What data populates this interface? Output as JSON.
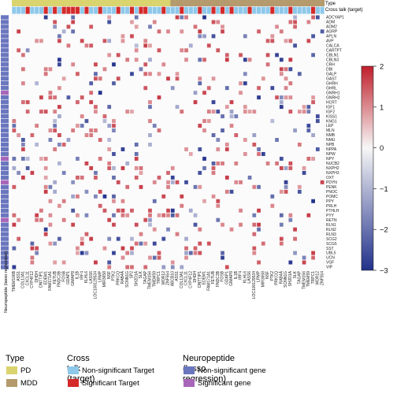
{
  "chart_data": {
    "type": "heatmap",
    "annotation_labels": {
      "type": "Type",
      "crosstalk": "Cross talk (target)",
      "neuropeptide": "Neuropeptide (lasso regression)"
    },
    "rows": [
      "ADCYAP1",
      "ADM",
      "ADM2",
      "AGRP",
      "APLN",
      "AVP",
      "CALCA",
      "CARTPT",
      "CBLN1",
      "CBLN3",
      "CRH",
      "DBI",
      "GALP",
      "GAST",
      "GHRH",
      "GHRL",
      "GNRH1",
      "GNRH2",
      "HCRT",
      "IGF1",
      "IGF2",
      "KISS1",
      "KNG1",
      "LEP",
      "MLN",
      "NMB",
      "NMU",
      "NPB",
      "NPPA",
      "NPW",
      "NPY",
      "NUCB2",
      "NXPH2",
      "NXPH3",
      "OXT",
      "PDYN",
      "PENK",
      "PNOC",
      "POMC",
      "PPY",
      "PRLH",
      "PTHLH",
      "PYY",
      "RETN",
      "RLN1",
      "RLN2",
      "RLN3",
      "SCG2",
      "SCG5",
      "SST",
      "UBL5",
      "UCN",
      "VGF",
      "VIP"
    ],
    "row_significant": [
      false,
      false,
      false,
      false,
      false,
      false,
      false,
      false,
      false,
      false,
      false,
      false,
      false,
      false,
      false,
      false,
      true,
      false,
      false,
      false,
      false,
      false,
      false,
      false,
      false,
      false,
      false,
      false,
      false,
      false,
      true,
      false,
      false,
      false,
      false,
      true,
      false,
      false,
      false,
      false,
      false,
      false,
      false,
      true,
      false,
      false,
      false,
      false,
      false,
      false,
      false,
      false,
      false,
      false
    ],
    "columns": [
      "TMEM106B",
      "ASS1",
      "COL13A1",
      "CXCL11",
      "CYP4F12",
      "DHDH",
      "DNTTIP1",
      "EDEM1",
      "FAM171A1",
      "FETUB",
      "FNDC3B",
      "FOSB",
      "GDAP1",
      "GIMAP8",
      "IL1B",
      "IRF4",
      "KLHL6",
      "LASS6",
      "LOC100129534",
      "LRMP",
      "MIR3658",
      "NSF",
      "PTK2",
      "PRKCQ",
      "RAB4A",
      "SCNN1G",
      "SP2",
      "SH2D1A",
      "SLK",
      "TAGAP",
      "TMEM156",
      "TMEM59",
      "TRPC1",
      "WDR12",
      "ZNF554",
      "ABCB10",
      "ASS1",
      "COL13A1",
      "CXCL11",
      "CYP4F12",
      "DHDH",
      "DNTTIP1",
      "EDEM1",
      "FAM171A1",
      "FETUB",
      "FNDC3B",
      "FOSB",
      "GDAP1",
      "GIMAP8",
      "IL1B",
      "IRF4",
      "KLHL6",
      "LASS6",
      "LOC100129534",
      "LRMP",
      "MIR3658",
      "NSF",
      "PTK2",
      "PRKCQ",
      "RAB4A",
      "SCNN1G",
      "SH2D1A",
      "SLK",
      "TAGAP",
      "TMEM156",
      "TMEM59",
      "TRPC1",
      "WDR12",
      "ZNF554"
    ],
    "column_type": [
      "PD",
      "PD",
      "PD",
      "PD",
      "PD",
      "PD",
      "PD",
      "PD",
      "PD",
      "PD",
      "PD",
      "PD",
      "PD",
      "PD",
      "PD",
      "PD",
      "PD",
      "PD",
      "PD",
      "PD",
      "PD",
      "PD",
      "PD",
      "PD",
      "PD",
      "PD",
      "PD",
      "PD",
      "PD",
      "PD",
      "PD",
      "PD",
      "PD",
      "PD",
      "PD",
      "MDD",
      "MDD",
      "MDD",
      "MDD",
      "MDD",
      "MDD",
      "MDD",
      "MDD",
      "MDD",
      "MDD",
      "MDD",
      "MDD",
      "MDD",
      "MDD",
      "MDD",
      "MDD",
      "MDD",
      "MDD",
      "MDD",
      "MDD",
      "MDD",
      "MDD",
      "MDD",
      "MDD",
      "MDD",
      "MDD",
      "MDD",
      "MDD",
      "MDD",
      "MDD",
      "MDD",
      "MDD",
      "MDD",
      "MDD"
    ],
    "significant_target_columns": [
      3,
      7,
      9,
      11,
      12,
      13,
      14,
      16,
      19,
      23,
      26,
      28,
      29,
      33,
      37,
      41,
      44,
      46,
      48,
      52,
      57,
      61,
      66
    ],
    "colorbar": {
      "min": -3,
      "max": 2,
      "ticks": [
        2,
        1,
        0,
        -1,
        -2,
        -3
      ]
    },
    "grid": true
  },
  "legend": {
    "type": {
      "title": "Type",
      "items": [
        "PD",
        "MDD"
      ]
    },
    "crosstalk": {
      "title": "Cross talk (target)",
      "items": [
        "Non-significant Target",
        "Significant Target"
      ]
    },
    "neuropeptide": {
      "title": "Neuropeptide (lasso regression)",
      "items": [
        "Non-significant gene",
        "Significant gene"
      ]
    }
  },
  "colors": {
    "pd": "#d9d46e",
    "mdd": "#b49a6c",
    "nonsig_target": "#8ec8ea",
    "sig_target": "#d42a2a",
    "nonsig_gene": "#6a76bd",
    "sig_gene": "#a866b8",
    "high": "#bf1f2b",
    "mid": "#f7f7f7",
    "low": "#22318b",
    "cell_border": "#f0f0f0"
  }
}
